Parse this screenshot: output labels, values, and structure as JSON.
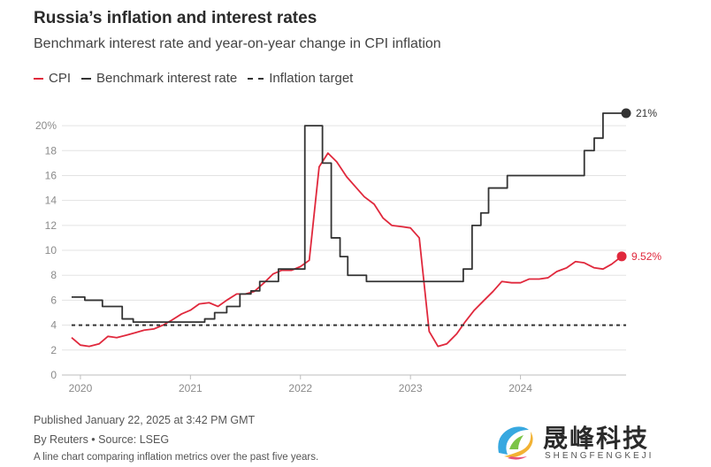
{
  "header": {
    "title": "Russia’s inflation and interest rates",
    "subtitle": "Benchmark interest rate and year-on-year change in CPI inflation"
  },
  "legend": [
    {
      "label": "CPI",
      "color": "#e0283c",
      "style": "solid"
    },
    {
      "label": "Benchmark interest rate",
      "color": "#333333",
      "style": "solid"
    },
    {
      "label": "Inflation target",
      "color": "#333333",
      "style": "dashed"
    }
  ],
  "chart_data": {
    "type": "line",
    "title": "Russia’s inflation and interest rates",
    "subtitle": "Benchmark interest rate and year-on-year change in CPI inflation",
    "xlabel": "",
    "ylabel": "",
    "xlim": [
      2019.88,
      2024.96
    ],
    "ylim": [
      0,
      21
    ],
    "y_ticks": [
      0,
      2,
      4,
      6,
      8,
      10,
      12,
      14,
      16,
      18,
      20
    ],
    "y_tick_labels": [
      "0",
      "2",
      "4",
      "6",
      "8",
      "10",
      "12",
      "14",
      "16",
      "18",
      "20%"
    ],
    "x_ticks": [
      2020,
      2021,
      2022,
      2023,
      2024
    ],
    "x_tick_labels": [
      "2020",
      "2021",
      "2022",
      "2023",
      "2024"
    ],
    "grid": "horizontal",
    "legend_position": "top-left",
    "series": [
      {
        "name": "CPI",
        "color": "#e0283c",
        "x": [
          2019.92,
          2020.0,
          2020.08,
          2020.17,
          2020.25,
          2020.33,
          2020.42,
          2020.5,
          2020.58,
          2020.67,
          2020.75,
          2020.83,
          2020.92,
          2021.0,
          2021.08,
          2021.17,
          2021.25,
          2021.33,
          2021.42,
          2021.5,
          2021.58,
          2021.67,
          2021.75,
          2021.83,
          2021.92,
          2022.0,
          2022.08,
          2022.17,
          2022.25,
          2022.33,
          2022.42,
          2022.5,
          2022.58,
          2022.67,
          2022.75,
          2022.83,
          2022.92,
          2023.0,
          2023.08,
          2023.17,
          2023.25,
          2023.33,
          2023.42,
          2023.5,
          2023.58,
          2023.67,
          2023.75,
          2023.83,
          2023.92,
          2024.0,
          2024.08,
          2024.17,
          2024.25,
          2024.33,
          2024.42,
          2024.5,
          2024.58,
          2024.67,
          2024.75,
          2024.83,
          2024.92
        ],
        "values": [
          3.0,
          2.4,
          2.3,
          2.5,
          3.1,
          3.0,
          3.2,
          3.4,
          3.6,
          3.7,
          4.0,
          4.4,
          4.9,
          5.2,
          5.7,
          5.8,
          5.5,
          6.0,
          6.5,
          6.5,
          6.7,
          7.4,
          8.1,
          8.4,
          8.4,
          8.7,
          9.2,
          16.7,
          17.8,
          17.1,
          15.9,
          15.1,
          14.3,
          13.7,
          12.6,
          12.0,
          11.9,
          11.8,
          11.0,
          3.5,
          2.3,
          2.5,
          3.3,
          4.3,
          5.2,
          6.0,
          6.7,
          7.5,
          7.4,
          7.4,
          7.7,
          7.7,
          7.8,
          8.3,
          8.6,
          9.1,
          9.0,
          8.6,
          8.5,
          8.9,
          9.52
        ],
        "end_label": "9.52%"
      },
      {
        "name": "Benchmark interest rate",
        "color": "#333333",
        "step": true,
        "x": [
          2019.92,
          2020.04,
          2020.2,
          2020.38,
          2020.48,
          2020.56,
          2020.65,
          2020.75,
          2020.84,
          2020.92,
          2021.0,
          2021.13,
          2021.22,
          2021.33,
          2021.45,
          2021.55,
          2021.63,
          2021.8,
          2021.97,
          2022.04,
          2022.2,
          2022.28,
          2022.36,
          2022.43,
          2022.6,
          2022.74,
          2022.85,
          2022.95,
          2023.05,
          2023.2,
          2023.35,
          2023.48,
          2023.56,
          2023.64,
          2023.71,
          2023.88,
          2024.0,
          2024.15,
          2024.25,
          2024.4,
          2024.58,
          2024.67,
          2024.75,
          2024.84,
          2024.96
        ],
        "values": [
          6.25,
          6.0,
          5.5,
          4.5,
          4.25,
          4.25,
          4.25,
          4.25,
          4.25,
          4.25,
          4.25,
          4.5,
          5.0,
          5.5,
          6.5,
          6.75,
          7.5,
          8.5,
          8.5,
          20.0,
          17.0,
          11.0,
          9.5,
          8.0,
          7.5,
          7.5,
          7.5,
          7.5,
          7.5,
          7.5,
          7.5,
          8.5,
          12.0,
          13.0,
          15.0,
          16.0,
          16.0,
          16.0,
          16.0,
          16.0,
          18.0,
          19.0,
          21.0,
          21.0,
          21.0
        ],
        "end_label": "21%"
      },
      {
        "name": "Inflation target",
        "color": "#333333",
        "dashed": true,
        "x": [
          2019.92,
          2024.96
        ],
        "values": [
          4,
          4
        ]
      }
    ]
  },
  "footer": {
    "published": "Published January 22, 2025 at 3:42 PM GMT",
    "source": "By Reuters • Source: LSEG",
    "description": "A line chart comparing inflation metrics over the past five years."
  },
  "watermark": {
    "text": "晟峰科技",
    "subtext": "SHENGFENGKEJI"
  }
}
